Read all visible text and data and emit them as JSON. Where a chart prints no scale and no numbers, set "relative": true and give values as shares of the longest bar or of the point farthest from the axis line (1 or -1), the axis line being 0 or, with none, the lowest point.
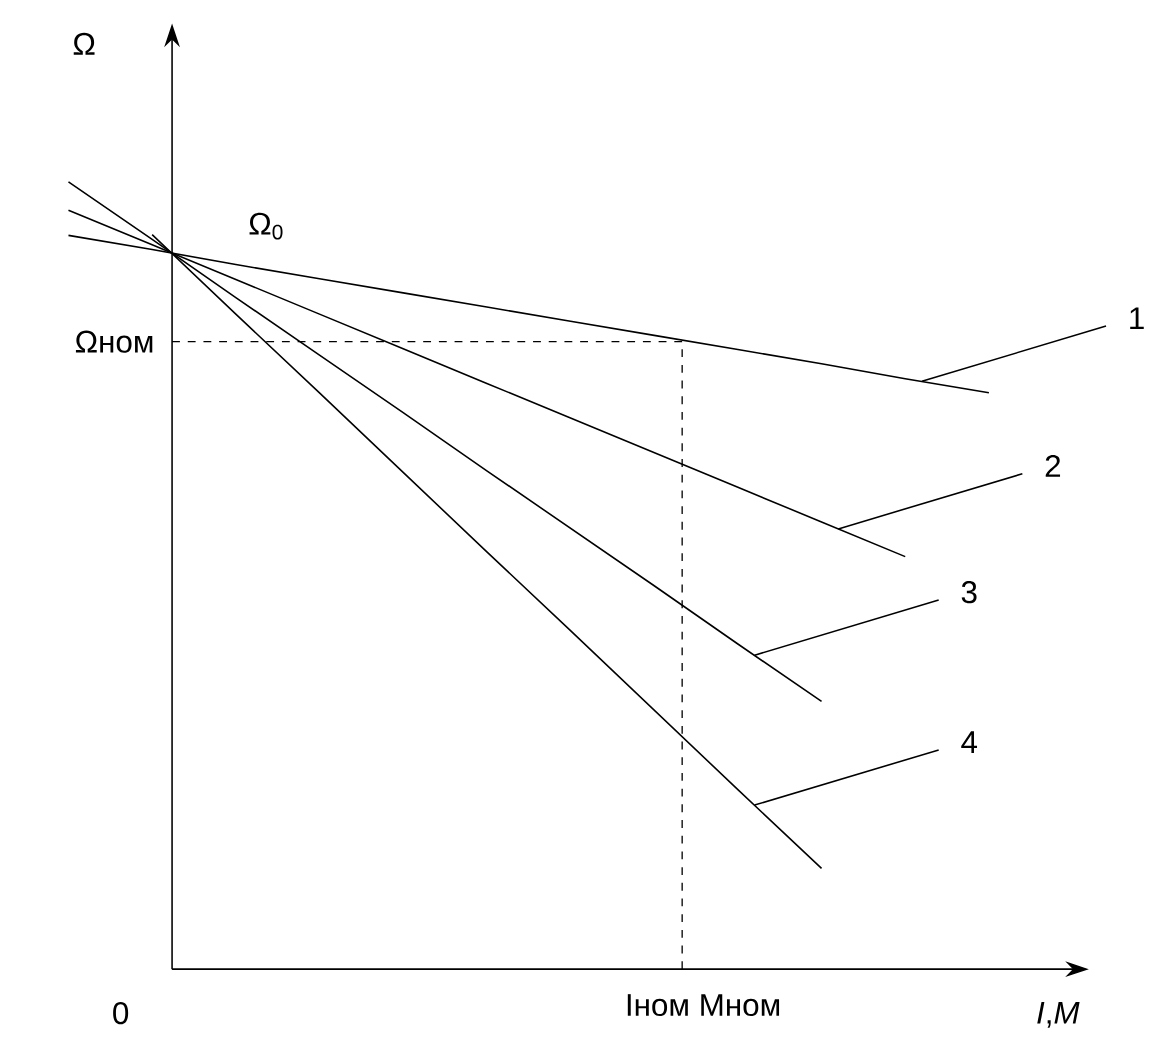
{
  "chart_data": {
    "type": "line",
    "relative": true,
    "xlabel": "*I*,*M*",
    "ylabel": "Ω",
    "categories": [
      null,
      null,
      null,
      null,
      null,
      null,
      null,
      null,
      null,
      null,
      null,
      null
    ],
    "series": [
      {
        "name": "1",
        "color": "#000000",
        "values": [
          0.932,
          0.914,
          0.895,
          0.877,
          0.859,
          0.841,
          0.823,
          0.805,
          0.787,
          0.769,
          0.75,
          0.732
        ]
      },
      {
        "name": "2",
        "color": "#000000",
        "values": [
          0.964,
          0.92,
          0.876,
          0.832,
          0.788,
          0.744,
          0.7,
          0.656,
          0.612,
          0.568,
          0.524,
          null
        ]
      },
      {
        "name": "3",
        "color": "#000000",
        "values": [
          1.0,
          0.927,
          0.853,
          0.78,
          0.707,
          0.633,
          0.56,
          0.487,
          0.413,
          0.34,
          null,
          null
        ]
      },
      {
        "name": "4",
        "color": "#000000",
        "values": [
          null,
          0.933,
          0.832,
          0.732,
          0.631,
          0.53,
          0.43,
          0.329,
          0.228,
          0.128,
          null,
          null
        ]
      }
    ],
    "ref_lines": [
      {
        "axis": "y",
        "value": 0.797,
        "label": "Ωном",
        "line_style": "dashed"
      }
    ],
    "annotations": [
      "Ω$_{0}$",
      "0",
      "Iном  Mном"
    ]
  }
}
